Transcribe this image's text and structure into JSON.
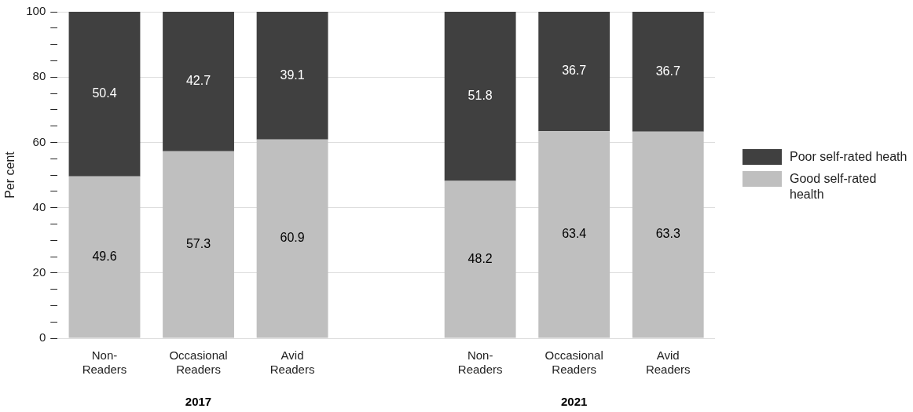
{
  "chart_data": {
    "type": "bar",
    "stacked": true,
    "ylabel": "Per cent",
    "categories": [
      "Non-Readers",
      "Occasional Readers",
      "Avid Readers",
      null,
      "Non-Readers",
      "Occasional Readers",
      "Avid Readers"
    ],
    "series": [
      {
        "name": "Good self-rated health",
        "color": "#bfbfbf",
        "values": [
          49.6,
          57.3,
          60.9,
          null,
          48.2,
          63.4,
          63.3
        ]
      },
      {
        "name": "Poor self-rated heath",
        "color": "#404040",
        "values": [
          50.4,
          42.7,
          39.1,
          null,
          51.8,
          36.7,
          36.7
        ]
      }
    ],
    "ylim": [
      0,
      100
    ],
    "yticks": [
      0,
      {
        "value": 5,
        "label": null
      },
      {
        "value": 10,
        "label": null
      },
      {
        "value": 15,
        "label": null
      },
      20,
      {
        "value": 25,
        "label": null
      },
      {
        "value": 30,
        "label": null
      },
      {
        "value": 35,
        "label": null
      },
      40,
      {
        "value": 45,
        "label": null
      },
      {
        "value": 50,
        "label": null
      },
      {
        "value": 55,
        "label": null
      },
      60,
      {
        "value": 65,
        "label": null
      },
      {
        "value": 70,
        "label": null
      },
      {
        "value": 75,
        "label": null
      },
      80,
      {
        "value": 85,
        "label": null
      },
      {
        "value": 90,
        "label": null
      },
      {
        "value": 95,
        "label": null
      },
      100
    ],
    "grid": "y",
    "legend": "right",
    "data_labels": true,
    "annotations": [
      "2017",
      "2021"
    ]
  }
}
